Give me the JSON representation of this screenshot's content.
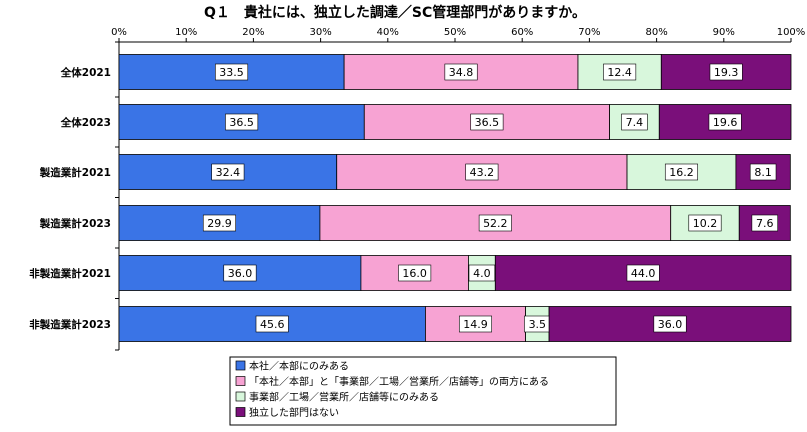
{
  "chart_data": {
    "type": "bar",
    "orientation": "horizontal-stacked-100",
    "title": "Q１　貴社には、独立した調達／SC管理部門がありますか。",
    "xlim": [
      0,
      100
    ],
    "x_ticks": [
      "0%",
      "10%",
      "20%",
      "30%",
      "40%",
      "50%",
      "60%",
      "70%",
      "80%",
      "90%",
      "100%"
    ],
    "categories": [
      "全体2021",
      "全体2023",
      "製造業計2021",
      "製造業計2023",
      "非製造業計2021",
      "非製造業計2023"
    ],
    "series": [
      {
        "name": "本社／本部にのみある",
        "color": "#3a74e6",
        "values": [
          33.5,
          36.5,
          32.4,
          29.9,
          36.0,
          45.6
        ],
        "labels": [
          "33.5",
          "36.5",
          "32.4",
          "29.9",
          "36.0",
          "45.6"
        ]
      },
      {
        "name": "「本社／本部」と「事業部／工場／営業所／店舗等」の両方にある",
        "color": "#f7a3d3",
        "values": [
          34.8,
          36.5,
          43.2,
          52.2,
          16.0,
          14.9
        ],
        "labels": [
          "34.8",
          "36.5",
          "43.2",
          "52.2",
          "16.0",
          "14.9"
        ]
      },
      {
        "name": "事業部／工場／営業所／店舗等にのみある",
        "color": "#d8f7dc",
        "values": [
          12.4,
          7.4,
          16.2,
          10.2,
          4.0,
          3.5
        ],
        "labels": [
          "12.4",
          "7.4",
          "16.2",
          "10.2",
          "4.0",
          "3.5"
        ]
      },
      {
        "name": "独立した部門はない",
        "color": "#7a0f7a",
        "values": [
          19.3,
          19.6,
          8.1,
          7.6,
          44.0,
          36.0
        ],
        "labels": [
          "19.3",
          "19.6",
          "8.1",
          "7.6",
          "44.0",
          "36.0"
        ]
      }
    ],
    "legend_position": "bottom-center"
  }
}
